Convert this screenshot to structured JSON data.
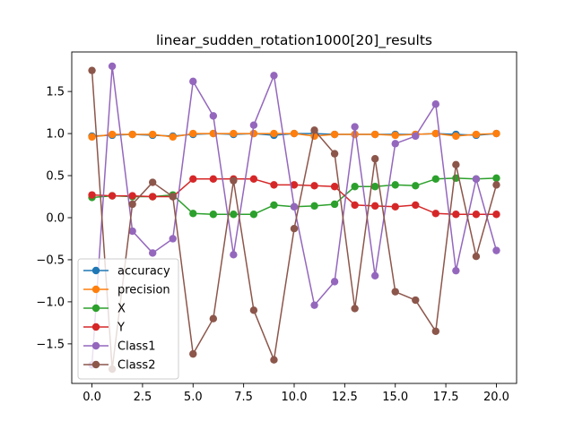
{
  "chart_data": {
    "type": "line",
    "title": "linear_sudden_rotation1000[20]_results",
    "xlabel": "",
    "ylabel": "",
    "xlim": [
      -1.0,
      21.0
    ],
    "ylim": [
      -1.97,
      1.97
    ],
    "xticks": [
      0.0,
      2.5,
      5.0,
      7.5,
      10.0,
      12.5,
      15.0,
      17.5,
      20.0
    ],
    "xtick_labels": [
      "0.0",
      "2.5",
      "5.0",
      "7.5",
      "10.0",
      "12.5",
      "15.0",
      "17.5",
      "20.0"
    ],
    "yticks": [
      1.5,
      1.0,
      0.5,
      0.0,
      -0.5,
      -1.0,
      -1.5
    ],
    "ytick_labels": [
      "1.5",
      "1.0",
      "0.5",
      "0.0",
      "−0.5",
      "−1.0",
      "−1.5"
    ],
    "grid": false,
    "legend_position": "lower-left",
    "x": [
      0,
      1,
      2,
      3,
      4,
      5,
      6,
      7,
      8,
      9,
      10,
      11,
      12,
      13,
      14,
      15,
      16,
      17,
      18,
      19,
      20
    ],
    "series": [
      {
        "name": "accuracy",
        "color": "#1f77b4",
        "values": [
          0.97,
          0.98,
          0.99,
          0.98,
          0.97,
          0.99,
          1.0,
          0.99,
          1.0,
          0.98,
          1.0,
          1.0,
          0.99,
          0.99,
          0.99,
          0.99,
          0.99,
          1.0,
          0.99,
          0.98,
          1.0
        ]
      },
      {
        "name": "precision",
        "color": "#ff7f0e",
        "values": [
          0.96,
          0.99,
          0.99,
          0.99,
          0.96,
          1.0,
          1.0,
          1.0,
          1.0,
          1.0,
          1.0,
          0.97,
          0.99,
          0.99,
          0.99,
          0.98,
          0.99,
          1.0,
          0.97,
          0.99,
          1.0
        ]
      },
      {
        "name": "X",
        "color": "#2ca02c",
        "values": [
          0.24,
          0.26,
          0.25,
          0.25,
          0.27,
          0.05,
          0.04,
          0.04,
          0.04,
          0.15,
          0.13,
          0.14,
          0.16,
          0.37,
          0.37,
          0.39,
          0.38,
          0.46,
          0.47,
          0.46,
          0.47
        ]
      },
      {
        "name": "Y",
        "color": "#d62728",
        "values": [
          0.27,
          0.26,
          0.26,
          0.25,
          0.25,
          0.46,
          0.46,
          0.46,
          0.46,
          0.39,
          0.39,
          0.38,
          0.37,
          0.15,
          0.14,
          0.13,
          0.15,
          0.05,
          0.04,
          0.04,
          0.04
        ]
      },
      {
        "name": "Class1",
        "color": "#9467bd",
        "values": [
          -1.75,
          1.8,
          -0.16,
          -0.42,
          -0.25,
          1.62,
          1.21,
          -0.44,
          1.1,
          1.69,
          0.13,
          -1.04,
          -0.76,
          1.08,
          -0.69,
          0.88,
          0.97,
          1.35,
          -0.63,
          0.46,
          -0.39
        ]
      },
      {
        "name": "Class2",
        "color": "#8c564b",
        "values": [
          1.75,
          -1.8,
          0.16,
          0.42,
          0.25,
          -1.62,
          -1.2,
          0.44,
          -1.1,
          -1.69,
          -0.13,
          1.04,
          0.76,
          -1.08,
          0.7,
          -0.88,
          -0.98,
          -1.35,
          0.63,
          -0.46,
          0.39
        ]
      }
    ]
  }
}
